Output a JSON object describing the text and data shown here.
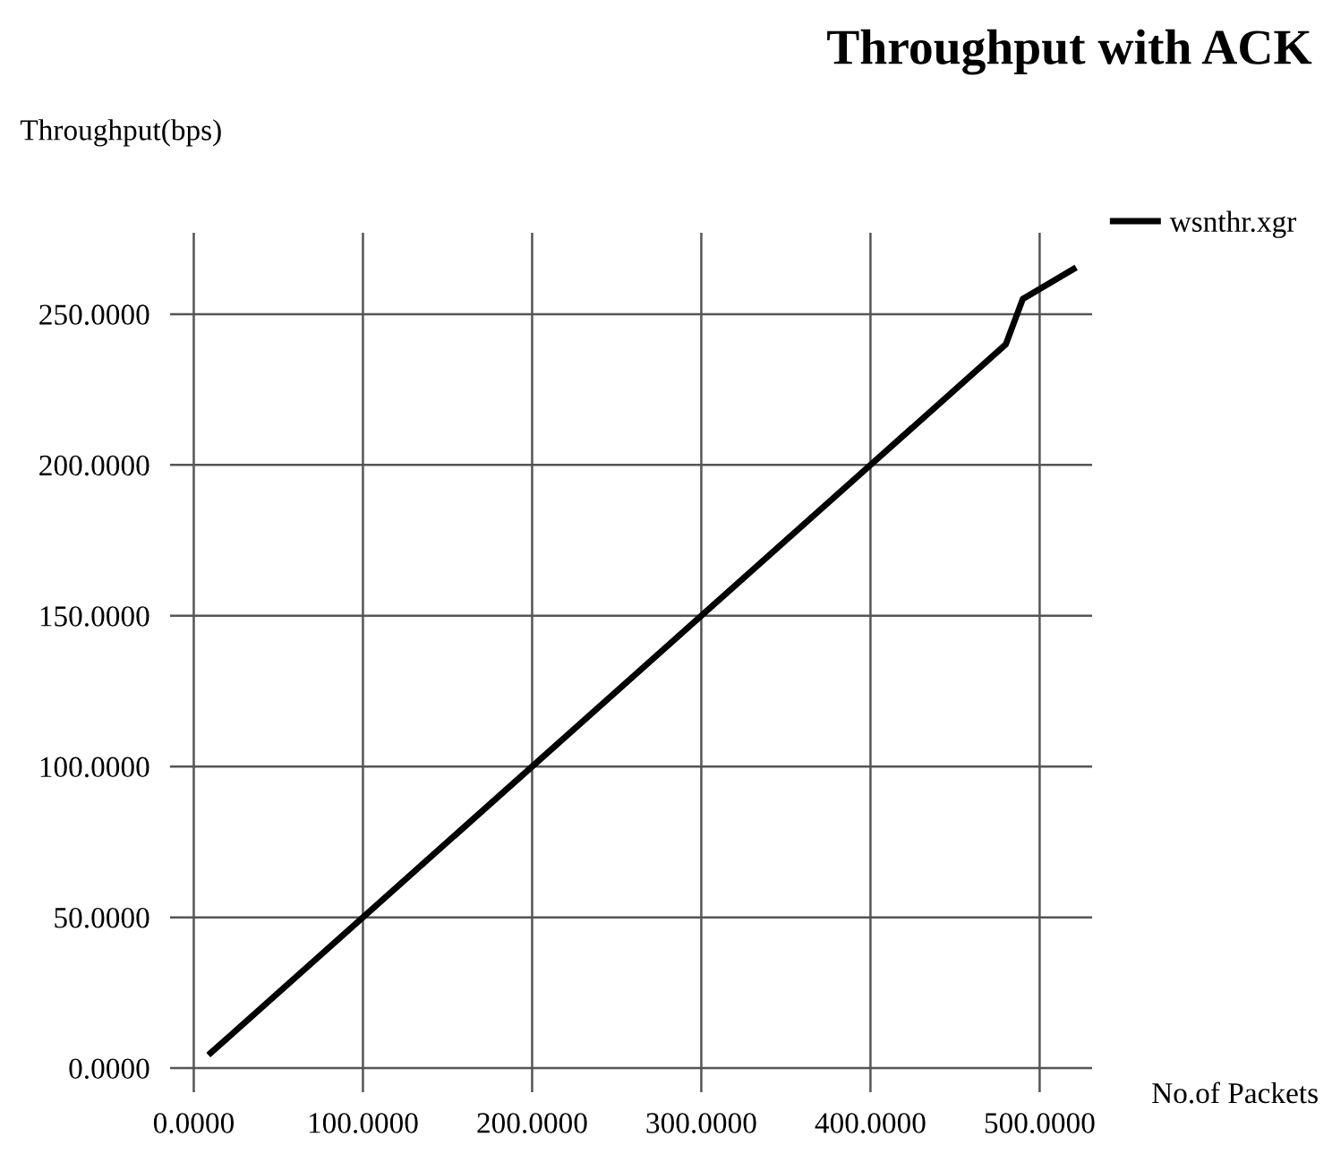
{
  "chart_data": {
    "type": "line",
    "title": "Throughput with ACK",
    "ylabel": "Throughput(bps)",
    "xlabel": "No.of Packets",
    "series": [
      {
        "name": "wsnthr.xgr",
        "color": "#000000",
        "x": [
          10,
          480,
          490,
          520
        ],
        "values": [
          5,
          240,
          255,
          265
        ]
      }
    ],
    "xlim": [
      -14,
      531
    ],
    "ylim": [
      -8,
      277
    ],
    "xticks": [
      {
        "value": 0,
        "label": "0.0000"
      },
      {
        "value": 100,
        "label": "100.0000"
      },
      {
        "value": 200,
        "label": "200.0000"
      },
      {
        "value": 300,
        "label": "300.0000"
      },
      {
        "value": 400,
        "label": "400.0000"
      },
      {
        "value": 500,
        "label": "500.0000"
      }
    ],
    "yticks": [
      {
        "value": 0,
        "label": "0.0000"
      },
      {
        "value": 50,
        "label": "50.0000"
      },
      {
        "value": 100,
        "label": "100.0000"
      },
      {
        "value": 150,
        "label": "150.0000"
      },
      {
        "value": 200,
        "label": "200.0000"
      },
      {
        "value": 250,
        "label": "250.0000"
      }
    ],
    "grid": true,
    "legend": "top right",
    "marker": "none",
    "line_style": "solid"
  }
}
